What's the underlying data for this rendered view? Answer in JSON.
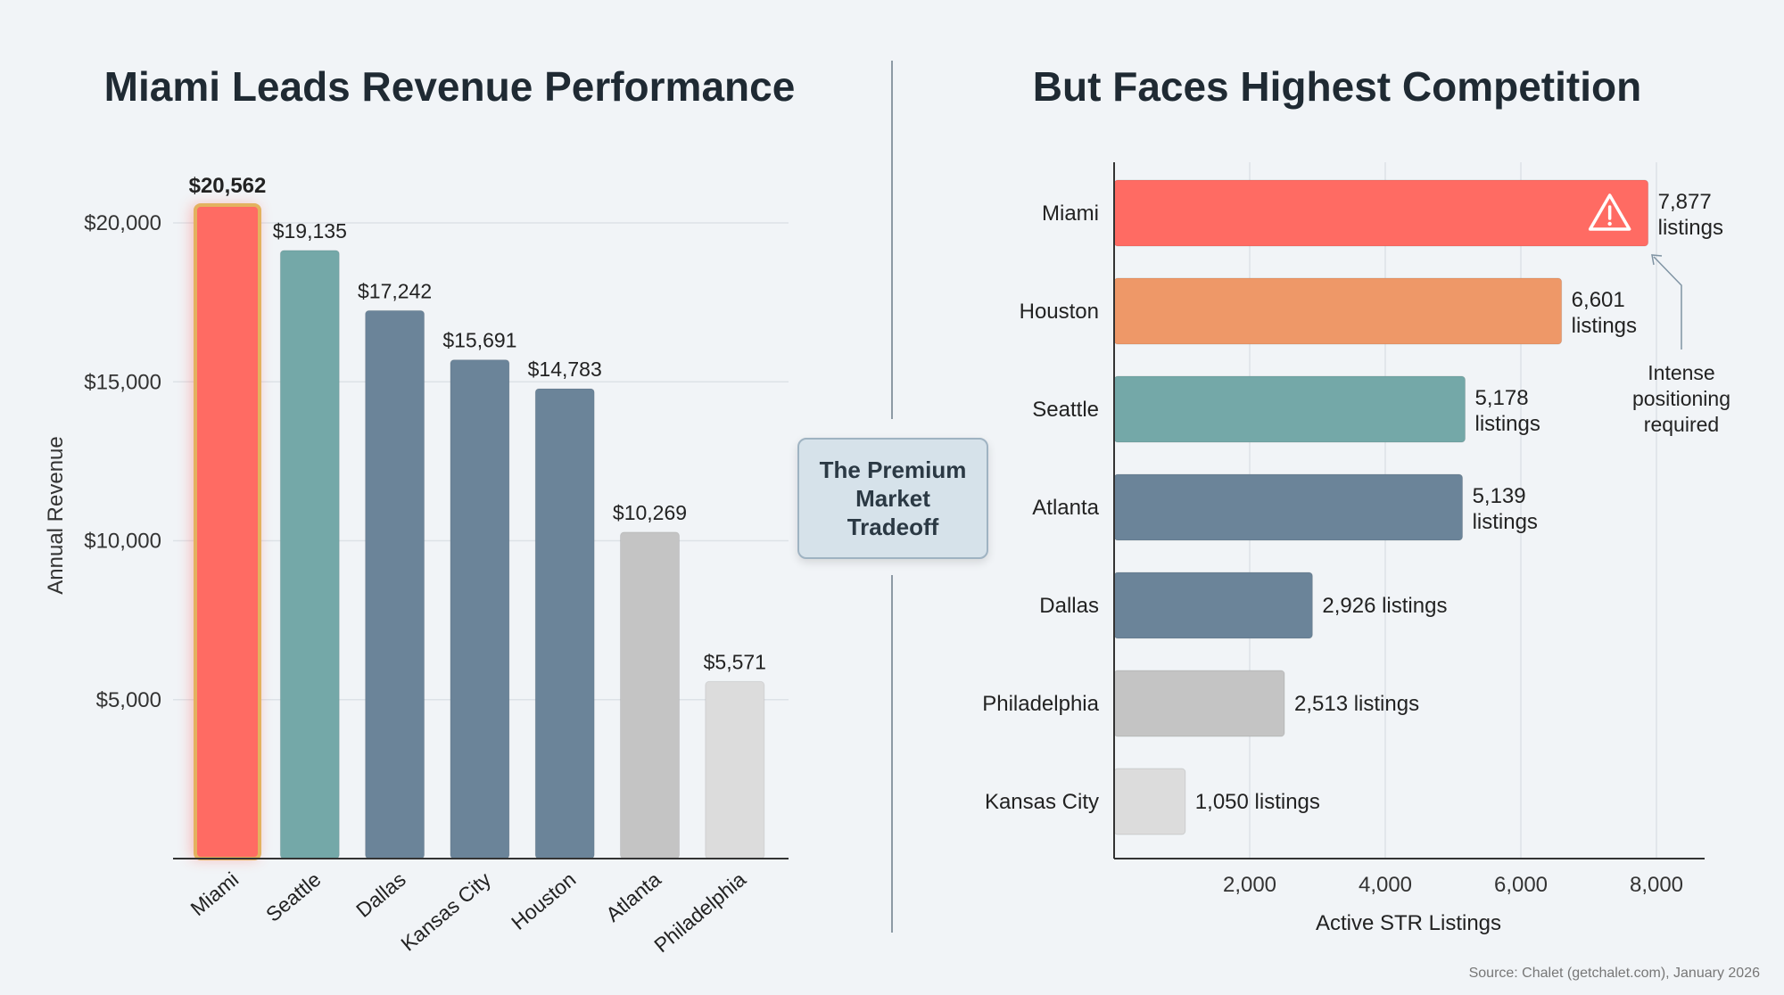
{
  "chart_data": [
    {
      "type": "bar",
      "orientation": "vertical",
      "title": "Miami Leads Revenue Performance",
      "ylabel": "Annual Revenue",
      "xlabel": "",
      "ylim": [
        0,
        20562
      ],
      "yticks": [
        5000,
        10000,
        15000,
        20000
      ],
      "ytick_labels": [
        "$5,000",
        "$10,000",
        "$15,000",
        "$20,000"
      ],
      "grid": true,
      "categories": [
        "Miami",
        "Seattle",
        "Dallas",
        "Kansas City",
        "Houston",
        "Atlanta",
        "Philadelphia"
      ],
      "values": [
        20562,
        19135,
        17242,
        15691,
        14783,
        10269,
        5571
      ],
      "data_labels": [
        "$20,562",
        "$19,135",
        "$17,242",
        "$15,691",
        "$14,783",
        "$10,269",
        "$5,571"
      ],
      "colors": [
        "#ff6b63",
        "#74a8a8",
        "#6b8499",
        "#6b8499",
        "#6b8499",
        "#c4c4c4",
        "#dcdcdc"
      ],
      "highlight": "Miami"
    },
    {
      "type": "bar",
      "orientation": "horizontal",
      "title": "But Faces Highest Competition",
      "xlabel": "Active STR Listings",
      "ylabel": "",
      "xlim": [
        0,
        8000
      ],
      "xticks": [
        2000,
        4000,
        6000,
        8000
      ],
      "xtick_labels": [
        "2,000",
        "4,000",
        "6,000",
        "8,000"
      ],
      "grid": true,
      "categories": [
        "Miami",
        "Houston",
        "Seattle",
        "Atlanta",
        "Dallas",
        "Philadelphia",
        "Kansas City"
      ],
      "values": [
        7877,
        6601,
        5178,
        5139,
        2926,
        2513,
        1050
      ],
      "data_labels": [
        [
          "7,877",
          "listings"
        ],
        [
          "6,601",
          "listings"
        ],
        [
          "5,178",
          "listings"
        ],
        [
          "5,139",
          "listings"
        ],
        [
          "2,926 listings"
        ],
        [
          "2,513 listings"
        ],
        [
          "1,050 listings"
        ]
      ],
      "colors": [
        "#ff6b63",
        "#ee9868",
        "#74a8a8",
        "#6b8499",
        "#6b8499",
        "#c4c4c4",
        "#dcdcdc"
      ],
      "icon": "warning-icon",
      "annotation": [
        "Intense",
        "positioning",
        "required"
      ]
    }
  ],
  "callout": "The Premium\nMarket\nTradeoff",
  "source": "Source: Chalet (getchalet.com), January 2026"
}
